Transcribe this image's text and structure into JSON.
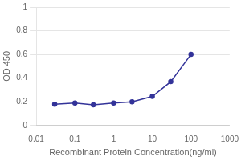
{
  "chart_data": {
    "type": "line",
    "x": [
      0.03,
      0.1,
      0.3,
      1,
      3,
      10,
      30,
      100
    ],
    "values": [
      0.18,
      0.19,
      0.175,
      0.19,
      0.2,
      0.245,
      0.37,
      0.6
    ],
    "color": "#333399",
    "marker": "circle",
    "xlabel": "Recombinant Protein Concentration(ng/ml)",
    "ylabel": "OD 450",
    "xlim": [
      0.01,
      1000
    ],
    "ylim": [
      0,
      1
    ],
    "xticks": [
      0.01,
      0.1,
      1,
      10,
      100,
      1000
    ],
    "yticks": [
      0,
      0.2,
      0.4,
      0.6,
      0.8,
      1
    ],
    "log": "x",
    "grid": "y"
  }
}
